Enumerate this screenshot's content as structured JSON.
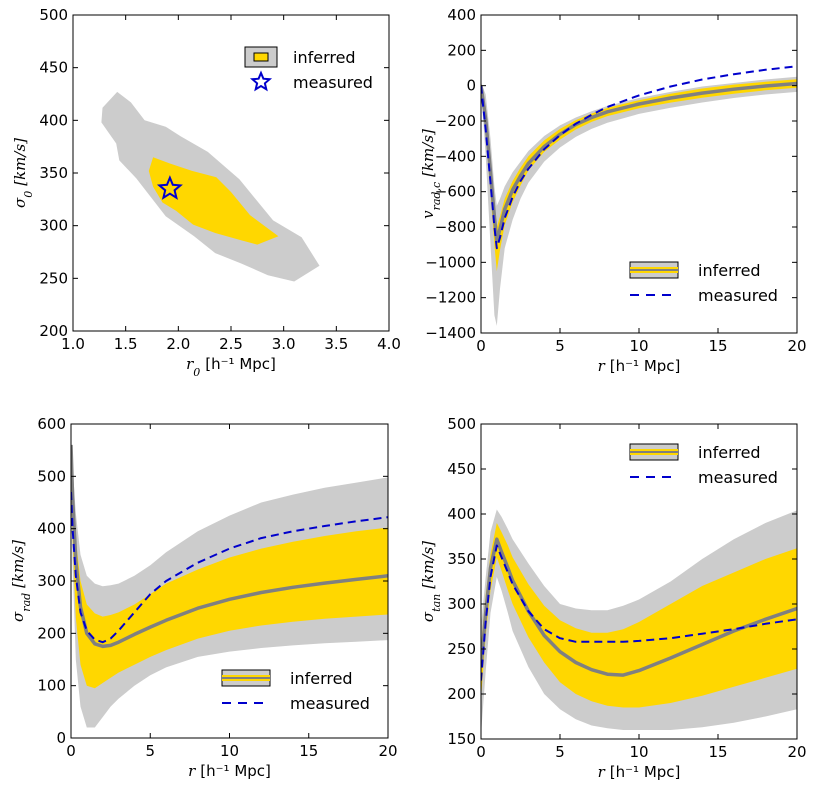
{
  "colors": {
    "outer_band": "#cccccc",
    "inner_band": "#ffd700",
    "median": "#808080",
    "measured": "#0000cc",
    "axes": "#000000"
  },
  "chart_data": [
    {
      "id": "p1",
      "type": "contour",
      "xlabel": "r_0 [h^-1 Mpc]",
      "xlabel_sym": "r",
      "xlabel_sub": "0",
      "xlabel_unit": "[h⁻¹ Mpc]",
      "ylabel": "σ_0 [km/s]",
      "ylabel_sym": "σ",
      "ylabel_sub": "0",
      "ylabel_unit": "[km/s]",
      "xlim": [
        1.0,
        4.0
      ],
      "ylim": [
        200,
        500
      ],
      "xticks": [
        1.0,
        1.5,
        2.0,
        2.5,
        3.0,
        3.5,
        4.0
      ],
      "xtick_labels": [
        "1.0",
        "1.5",
        "2.0",
        "2.5",
        "3.0",
        "3.5",
        "4.0"
      ],
      "yticks": [
        200,
        250,
        300,
        350,
        400,
        450,
        500
      ],
      "ytick_labels": [
        "200",
        "250",
        "300",
        "350",
        "400",
        "450",
        "500"
      ],
      "legend_position": "top-right",
      "legend": [
        {
          "label": "inferred",
          "style": "band-patch"
        },
        {
          "label": "measured",
          "style": "star"
        }
      ],
      "outer_region": [
        [
          1.28,
          412
        ],
        [
          1.42,
          427
        ],
        [
          1.55,
          417
        ],
        [
          1.68,
          400
        ],
        [
          1.88,
          394
        ],
        [
          2.02,
          385
        ],
        [
          2.28,
          370
        ],
        [
          2.58,
          344
        ],
        [
          2.9,
          305
        ],
        [
          3.17,
          289
        ],
        [
          3.34,
          262
        ],
        [
          3.1,
          247
        ],
        [
          2.85,
          253
        ],
        [
          2.6,
          264
        ],
        [
          2.35,
          274
        ],
        [
          2.15,
          290
        ],
        [
          1.88,
          309
        ],
        [
          1.6,
          345
        ],
        [
          1.44,
          362
        ],
        [
          1.41,
          378
        ],
        [
          1.27,
          398
        ]
      ],
      "inner_region": [
        [
          1.76,
          365
        ],
        [
          1.92,
          359
        ],
        [
          2.13,
          352
        ],
        [
          2.36,
          346
        ],
        [
          2.5,
          332
        ],
        [
          2.68,
          310
        ],
        [
          2.95,
          290
        ],
        [
          2.75,
          282
        ],
        [
          2.6,
          286
        ],
        [
          2.35,
          293
        ],
        [
          2.14,
          301
        ],
        [
          1.98,
          314
        ],
        [
          1.85,
          322
        ],
        [
          1.76,
          337
        ],
        [
          1.72,
          352
        ]
      ],
      "measured_point": {
        "x": 1.92,
        "y": 335
      }
    },
    {
      "id": "p2",
      "type": "line",
      "xlabel": "r [h^-1 Mpc]",
      "xlabel_sym": "r",
      "xlabel_sub": "",
      "xlabel_unit": "[h⁻¹ Mpc]",
      "ylabel": "v_rad,c [km/s]",
      "ylabel_sym": "v",
      "ylabel_sub": "rad,c",
      "ylabel_unit": "[km/s]",
      "xlim": [
        0,
        20
      ],
      "ylim": [
        -1400,
        400
      ],
      "xticks": [
        0,
        5,
        10,
        15,
        20
      ],
      "xtick_labels": [
        "0",
        "5",
        "10",
        "15",
        "20"
      ],
      "yticks": [
        -1400,
        -1200,
        -1000,
        -800,
        -600,
        -400,
        -200,
        0,
        200,
        400
      ],
      "ytick_labels": [
        "−1400",
        "−1200",
        "−1000",
        "−800",
        "−600",
        "−400",
        "−200",
        "0",
        "200",
        "400"
      ],
      "legend_position": "lower-right",
      "legend": [
        {
          "label": "inferred",
          "style": "band-line"
        },
        {
          "label": "measured",
          "style": "dashed"
        }
      ],
      "x": [
        0,
        0.3,
        0.6,
        0.85,
        1.0,
        1.2,
        1.5,
        2,
        2.5,
        3,
        4,
        5,
        6,
        7,
        8,
        10,
        12,
        14,
        16,
        18,
        20
      ],
      "outer_upper": [
        20,
        -50,
        -300,
        -570,
        -680,
        -640,
        -570,
        -490,
        -430,
        -370,
        -285,
        -225,
        -180,
        -145,
        -115,
        -70,
        -35,
        -5,
        15,
        35,
        50
      ],
      "inner_upper": [
        10,
        -120,
        -400,
        -680,
        -800,
        -740,
        -640,
        -540,
        -465,
        -400,
        -310,
        -245,
        -195,
        -158,
        -126,
        -82,
        -46,
        -16,
        6,
        22,
        36
      ],
      "median": [
        0,
        -190,
        -490,
        -740,
        -880,
        -810,
        -700,
        -590,
        -510,
        -440,
        -345,
        -275,
        -220,
        -180,
        -148,
        -104,
        -70,
        -42,
        -20,
        -2,
        12
      ],
      "inner_lower": [
        -10,
        -270,
        -610,
        -900,
        -1050,
        -930,
        -790,
        -660,
        -565,
        -480,
        -375,
        -305,
        -248,
        -205,
        -172,
        -128,
        -96,
        -68,
        -46,
        -26,
        -12
      ],
      "outer_lower": [
        -20,
        -400,
        -900,
        -1300,
        -1360,
        -1150,
        -920,
        -760,
        -640,
        -550,
        -430,
        -350,
        -290,
        -245,
        -210,
        -160,
        -125,
        -95,
        -70,
        -50,
        -35
      ],
      "measured": [
        0,
        -250,
        -550,
        -800,
        -920,
        -860,
        -750,
        -630,
        -540,
        -470,
        -360,
        -280,
        -215,
        -165,
        -120,
        -55,
        -5,
        35,
        65,
        90,
        110
      ]
    },
    {
      "id": "p3",
      "type": "line",
      "xlabel": "r [h^-1 Mpc]",
      "xlabel_sym": "r",
      "xlabel_sub": "",
      "xlabel_unit": "[h⁻¹ Mpc]",
      "ylabel": "σ_rad [km/s]",
      "ylabel_sym": "σ",
      "ylabel_sub": "rad",
      "ylabel_unit": "[km/s]",
      "xlim": [
        0,
        20
      ],
      "ylim": [
        0,
        600
      ],
      "xticks": [
        0,
        5,
        10,
        15,
        20
      ],
      "xtick_labels": [
        "0",
        "5",
        "10",
        "15",
        "20"
      ],
      "yticks": [
        0,
        100,
        200,
        300,
        400,
        500,
        600
      ],
      "ytick_labels": [
        "0",
        "100",
        "200",
        "300",
        "400",
        "500",
        "600"
      ],
      "legend_position": "lower-right",
      "legend": [
        {
          "label": "inferred",
          "style": "band-line"
        },
        {
          "label": "measured",
          "style": "dashed"
        }
      ],
      "x": [
        0,
        0.1,
        0.3,
        0.6,
        1,
        1.5,
        2,
        2.5,
        3,
        4,
        5,
        6,
        8,
        10,
        12,
        14,
        16,
        18,
        20
      ],
      "outer_upper": [
        580,
        520,
        430,
        350,
        310,
        295,
        290,
        292,
        295,
        310,
        330,
        355,
        395,
        425,
        450,
        465,
        478,
        488,
        498
      ],
      "inner_upper": [
        540,
        470,
        380,
        300,
        255,
        238,
        232,
        235,
        240,
        255,
        275,
        295,
        322,
        345,
        362,
        375,
        386,
        395,
        402
      ],
      "median": [
        560,
        460,
        340,
        250,
        200,
        180,
        175,
        177,
        183,
        198,
        212,
        225,
        248,
        265,
        278,
        288,
        296,
        303,
        310
      ],
      "inner_lower": [
        500,
        380,
        230,
        140,
        100,
        95,
        105,
        115,
        125,
        140,
        155,
        168,
        190,
        205,
        215,
        222,
        228,
        232,
        236
      ],
      "outer_lower": [
        480,
        330,
        150,
        60,
        20,
        20,
        40,
        60,
        75,
        100,
        120,
        135,
        155,
        165,
        172,
        177,
        181,
        184,
        187
      ],
      "measured": [
        470,
        400,
        310,
        240,
        205,
        188,
        183,
        190,
        205,
        240,
        275,
        300,
        335,
        362,
        382,
        395,
        405,
        414,
        422
      ]
    },
    {
      "id": "p4",
      "type": "line",
      "xlabel": "r [h^-1 Mpc]",
      "xlabel_sym": "r",
      "xlabel_sub": "",
      "xlabel_unit": "[h⁻¹ Mpc]",
      "ylabel": "σ_tan [km/s]",
      "ylabel_sym": "σ",
      "ylabel_sub": "tan",
      "ylabel_unit": "[km/s]",
      "xlim": [
        0,
        20
      ],
      "ylim": [
        150,
        500
      ],
      "xticks": [
        0,
        5,
        10,
        15,
        20
      ],
      "xtick_labels": [
        "0",
        "5",
        "10",
        "15",
        "20"
      ],
      "yticks": [
        150,
        200,
        250,
        300,
        350,
        400,
        450,
        500
      ],
      "ytick_labels": [
        "150",
        "200",
        "250",
        "300",
        "350",
        "400",
        "450",
        "500"
      ],
      "legend_position": "top-right",
      "legend": [
        {
          "label": "inferred",
          "style": "band-line"
        },
        {
          "label": "measured",
          "style": "dashed"
        }
      ],
      "x": [
        0,
        0.3,
        0.6,
        1.0,
        1.3,
        1.7,
        2,
        3,
        4,
        5,
        6,
        7,
        8,
        9,
        10,
        12,
        14,
        16,
        18,
        20
      ],
      "outer_upper": [
        275,
        330,
        380,
        405,
        397,
        383,
        372,
        345,
        320,
        300,
        295,
        293,
        293,
        298,
        305,
        325,
        350,
        372,
        390,
        404
      ],
      "inner_upper": [
        255,
        310,
        355,
        390,
        380,
        365,
        352,
        322,
        298,
        282,
        273,
        268,
        268,
        272,
        280,
        300,
        320,
        335,
        350,
        362
      ],
      "median": [
        230,
        290,
        340,
        372,
        358,
        340,
        326,
        292,
        265,
        247,
        235,
        227,
        222,
        221,
        226,
        240,
        255,
        270,
        283,
        295
      ],
      "inner_lower": [
        195,
        265,
        315,
        352,
        337,
        315,
        300,
        263,
        235,
        213,
        200,
        192,
        187,
        185,
        185,
        190,
        198,
        208,
        218,
        228
      ],
      "outer_lower": [
        155,
        225,
        290,
        330,
        315,
        290,
        270,
        230,
        200,
        183,
        172,
        165,
        162,
        160,
        160,
        160,
        163,
        168,
        175,
        183
      ],
      "measured": [
        215,
        280,
        330,
        365,
        352,
        335,
        322,
        292,
        272,
        262,
        258,
        258,
        258,
        258,
        259,
        262,
        267,
        272,
        278,
        283
      ]
    }
  ]
}
